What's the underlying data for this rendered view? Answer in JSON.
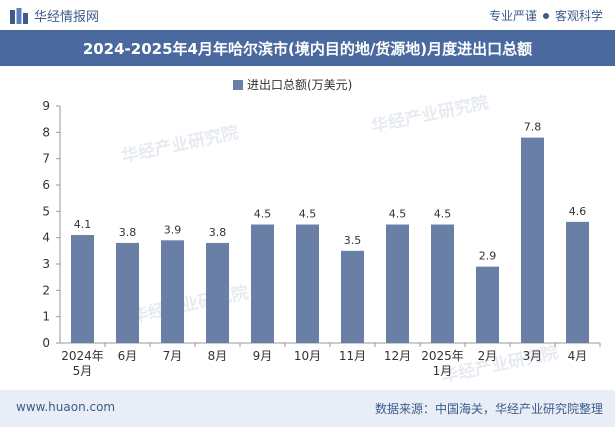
{
  "header": {
    "brand": "华经情报网",
    "slogan_left": "专业严谨",
    "slogan_right": "客观科学"
  },
  "title": "2024-2025年4月年哈尔滨市(境内目的地/货源地)月度进出口总额",
  "footer": {
    "site": "www.huaon.com",
    "source": "数据来源：中国海关，华经产业研究院整理"
  },
  "watermark": "华经产业研究院",
  "colors": {
    "bar": "#6a7fa6",
    "header": "#4a6a9f"
  },
  "chart_data": {
    "type": "bar",
    "legend": "进出口总额(万美元)",
    "categories": [
      [
        "2024年",
        "5月"
      ],
      [
        "6月"
      ],
      [
        "7月"
      ],
      [
        "8月"
      ],
      [
        "9月"
      ],
      [
        "10月"
      ],
      [
        "11月"
      ],
      [
        "12月"
      ],
      [
        "2025年",
        "1月"
      ],
      [
        "2月"
      ],
      [
        "3月"
      ],
      [
        "4月"
      ]
    ],
    "values": [
      4.1,
      3.8,
      3.9,
      3.8,
      4.5,
      4.5,
      3.5,
      4.5,
      4.5,
      2.9,
      7.8,
      4.6
    ],
    "ylim": [
      0,
      9
    ],
    "yticks": [
      0,
      1,
      2,
      3,
      4,
      5,
      6,
      7,
      8,
      9
    ],
    "xlabel": "",
    "ylabel": ""
  }
}
